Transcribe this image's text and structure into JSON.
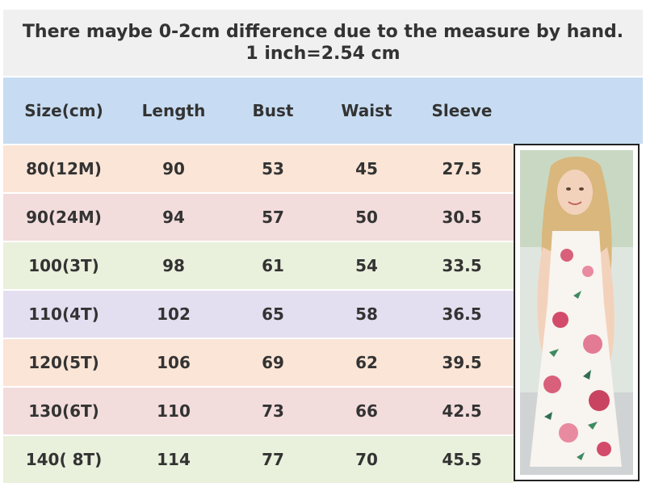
{
  "notice": {
    "line1": "There maybe 0-2cm difference due to the measure by hand.",
    "line2": "1 inch=2.54 cm"
  },
  "table": {
    "headers": [
      "Size(cm)",
      "Length",
      "Bust",
      "Waist",
      "Sleeve"
    ],
    "rows": [
      {
        "size": "80(12M)",
        "length": "90",
        "bust": "53",
        "waist": "45",
        "sleeve": "27.5",
        "color": "#fbe5d6"
      },
      {
        "size": "90(24M)",
        "length": "94",
        "bust": "57",
        "waist": "50",
        "sleeve": "30.5",
        "color": "#f3dcdc"
      },
      {
        "size": "100(3T)",
        "length": "98",
        "bust": "61",
        "waist": "54",
        "sleeve": "33.5",
        "color": "#e9f0dc"
      },
      {
        "size": "110(4T)",
        "length": "102",
        "bust": "65",
        "waist": "58",
        "sleeve": "36.5",
        "color": "#e4dff0"
      },
      {
        "size": "120(5T)",
        "length": "106",
        "bust": "69",
        "waist": "62",
        "sleeve": "39.5",
        "color": "#fbe5d6"
      },
      {
        "size": "130(6T)",
        "length": "110",
        "bust": "73",
        "waist": "66",
        "sleeve": "42.5",
        "color": "#f3dcdc"
      },
      {
        "size": "140( 8T)",
        "length": "114",
        "bust": "77",
        "waist": "70",
        "sleeve": "45.5",
        "color": "#e9f0dc"
      }
    ]
  },
  "colors": {
    "header_bg": "#c7dcf2",
    "notice_bg": "#f0f0f0"
  },
  "photo": {
    "icon": "girl-in-floral-dress-photo"
  }
}
